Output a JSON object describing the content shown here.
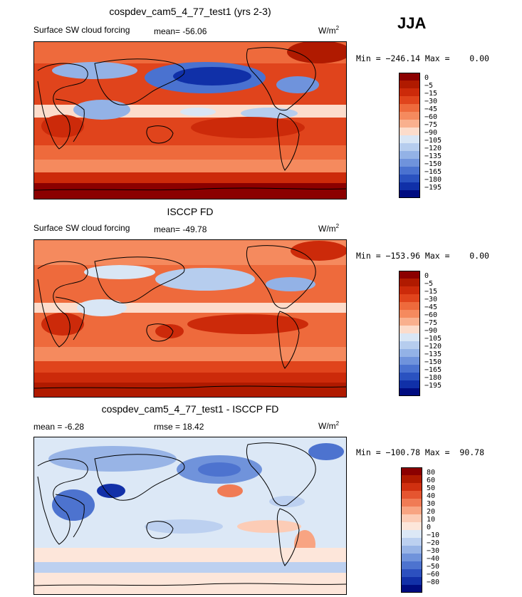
{
  "season": "JJA",
  "units": "W/m",
  "units_sup": "2",
  "panels": [
    {
      "title": "cospdev_cam5_4_77_test1 (yrs 2-3)",
      "subtitle": "Surface SW cloud forcing",
      "mean_text": "mean= -56.06",
      "minmax": "Min = −246.14 Max =    0.00",
      "colorbar_labels": [
        "0",
        "−5",
        "−15",
        "−30",
        "−45",
        "−60",
        "−75",
        "−90",
        "−105",
        "−120",
        "−135",
        "−150",
        "−165",
        "−180",
        "−195"
      ]
    },
    {
      "title": "ISCCP FD",
      "subtitle": "Surface SW cloud forcing",
      "mean_text": "mean= -49.78",
      "minmax": "Min = −153.96 Max =    0.00",
      "colorbar_labels": [
        "0",
        "−5",
        "−15",
        "−30",
        "−45",
        "−60",
        "−75",
        "−90",
        "−105",
        "−120",
        "−135",
        "−150",
        "−165",
        "−180",
        "−195"
      ]
    },
    {
      "title": "cospdev_cam5_4_77_test1 - ISCCP FD",
      "mean_text": "mean =   -6.28",
      "rmse_text": "rmse =   18.42",
      "minmax": "Min = −100.78 Max =  90.78",
      "colorbar_labels": [
        "80",
        "60",
        "50",
        "40",
        "30",
        "20",
        "10",
        "0",
        "−10",
        "−20",
        "−30",
        "−40",
        "−50",
        "−60",
        "−80"
      ]
    }
  ],
  "colors": {
    "abs_scale": [
      "#8b0000",
      "#b01a00",
      "#cc2a0a",
      "#e0441c",
      "#ee6a3c",
      "#f58a5e",
      "#f9b08e",
      "#fcdccb",
      "#d9e6f5",
      "#b6cdee",
      "#93b2e6",
      "#6f93dc",
      "#4a72d0",
      "#2a52c0",
      "#1030a8",
      "#000c80"
    ],
    "diff_scale": [
      "#8b0000",
      "#b01a00",
      "#d03010",
      "#e55530",
      "#f07b55",
      "#f8a482",
      "#fcccb6",
      "#fde6da",
      "#dce8f6",
      "#bcd0f0",
      "#98b4e6",
      "#7093db",
      "#4d73cf",
      "#2c50bf",
      "#1230a8",
      "#000c80"
    ]
  },
  "map_data": [
    {
      "type": "contour-map",
      "projection": "cylindrical equidistant",
      "field": "Surface SW cloud forcing",
      "min": -246.14,
      "max": 0.0,
      "mean": -56.06
    },
    {
      "type": "contour-map",
      "projection": "cylindrical equidistant",
      "field": "Surface SW cloud forcing",
      "min": -153.96,
      "max": 0.0,
      "mean": -49.78
    },
    {
      "type": "contour-map",
      "projection": "cylindrical equidistant",
      "field": "difference",
      "min": -100.78,
      "max": 90.78,
      "mean": -6.28,
      "rmse": 18.42
    }
  ]
}
